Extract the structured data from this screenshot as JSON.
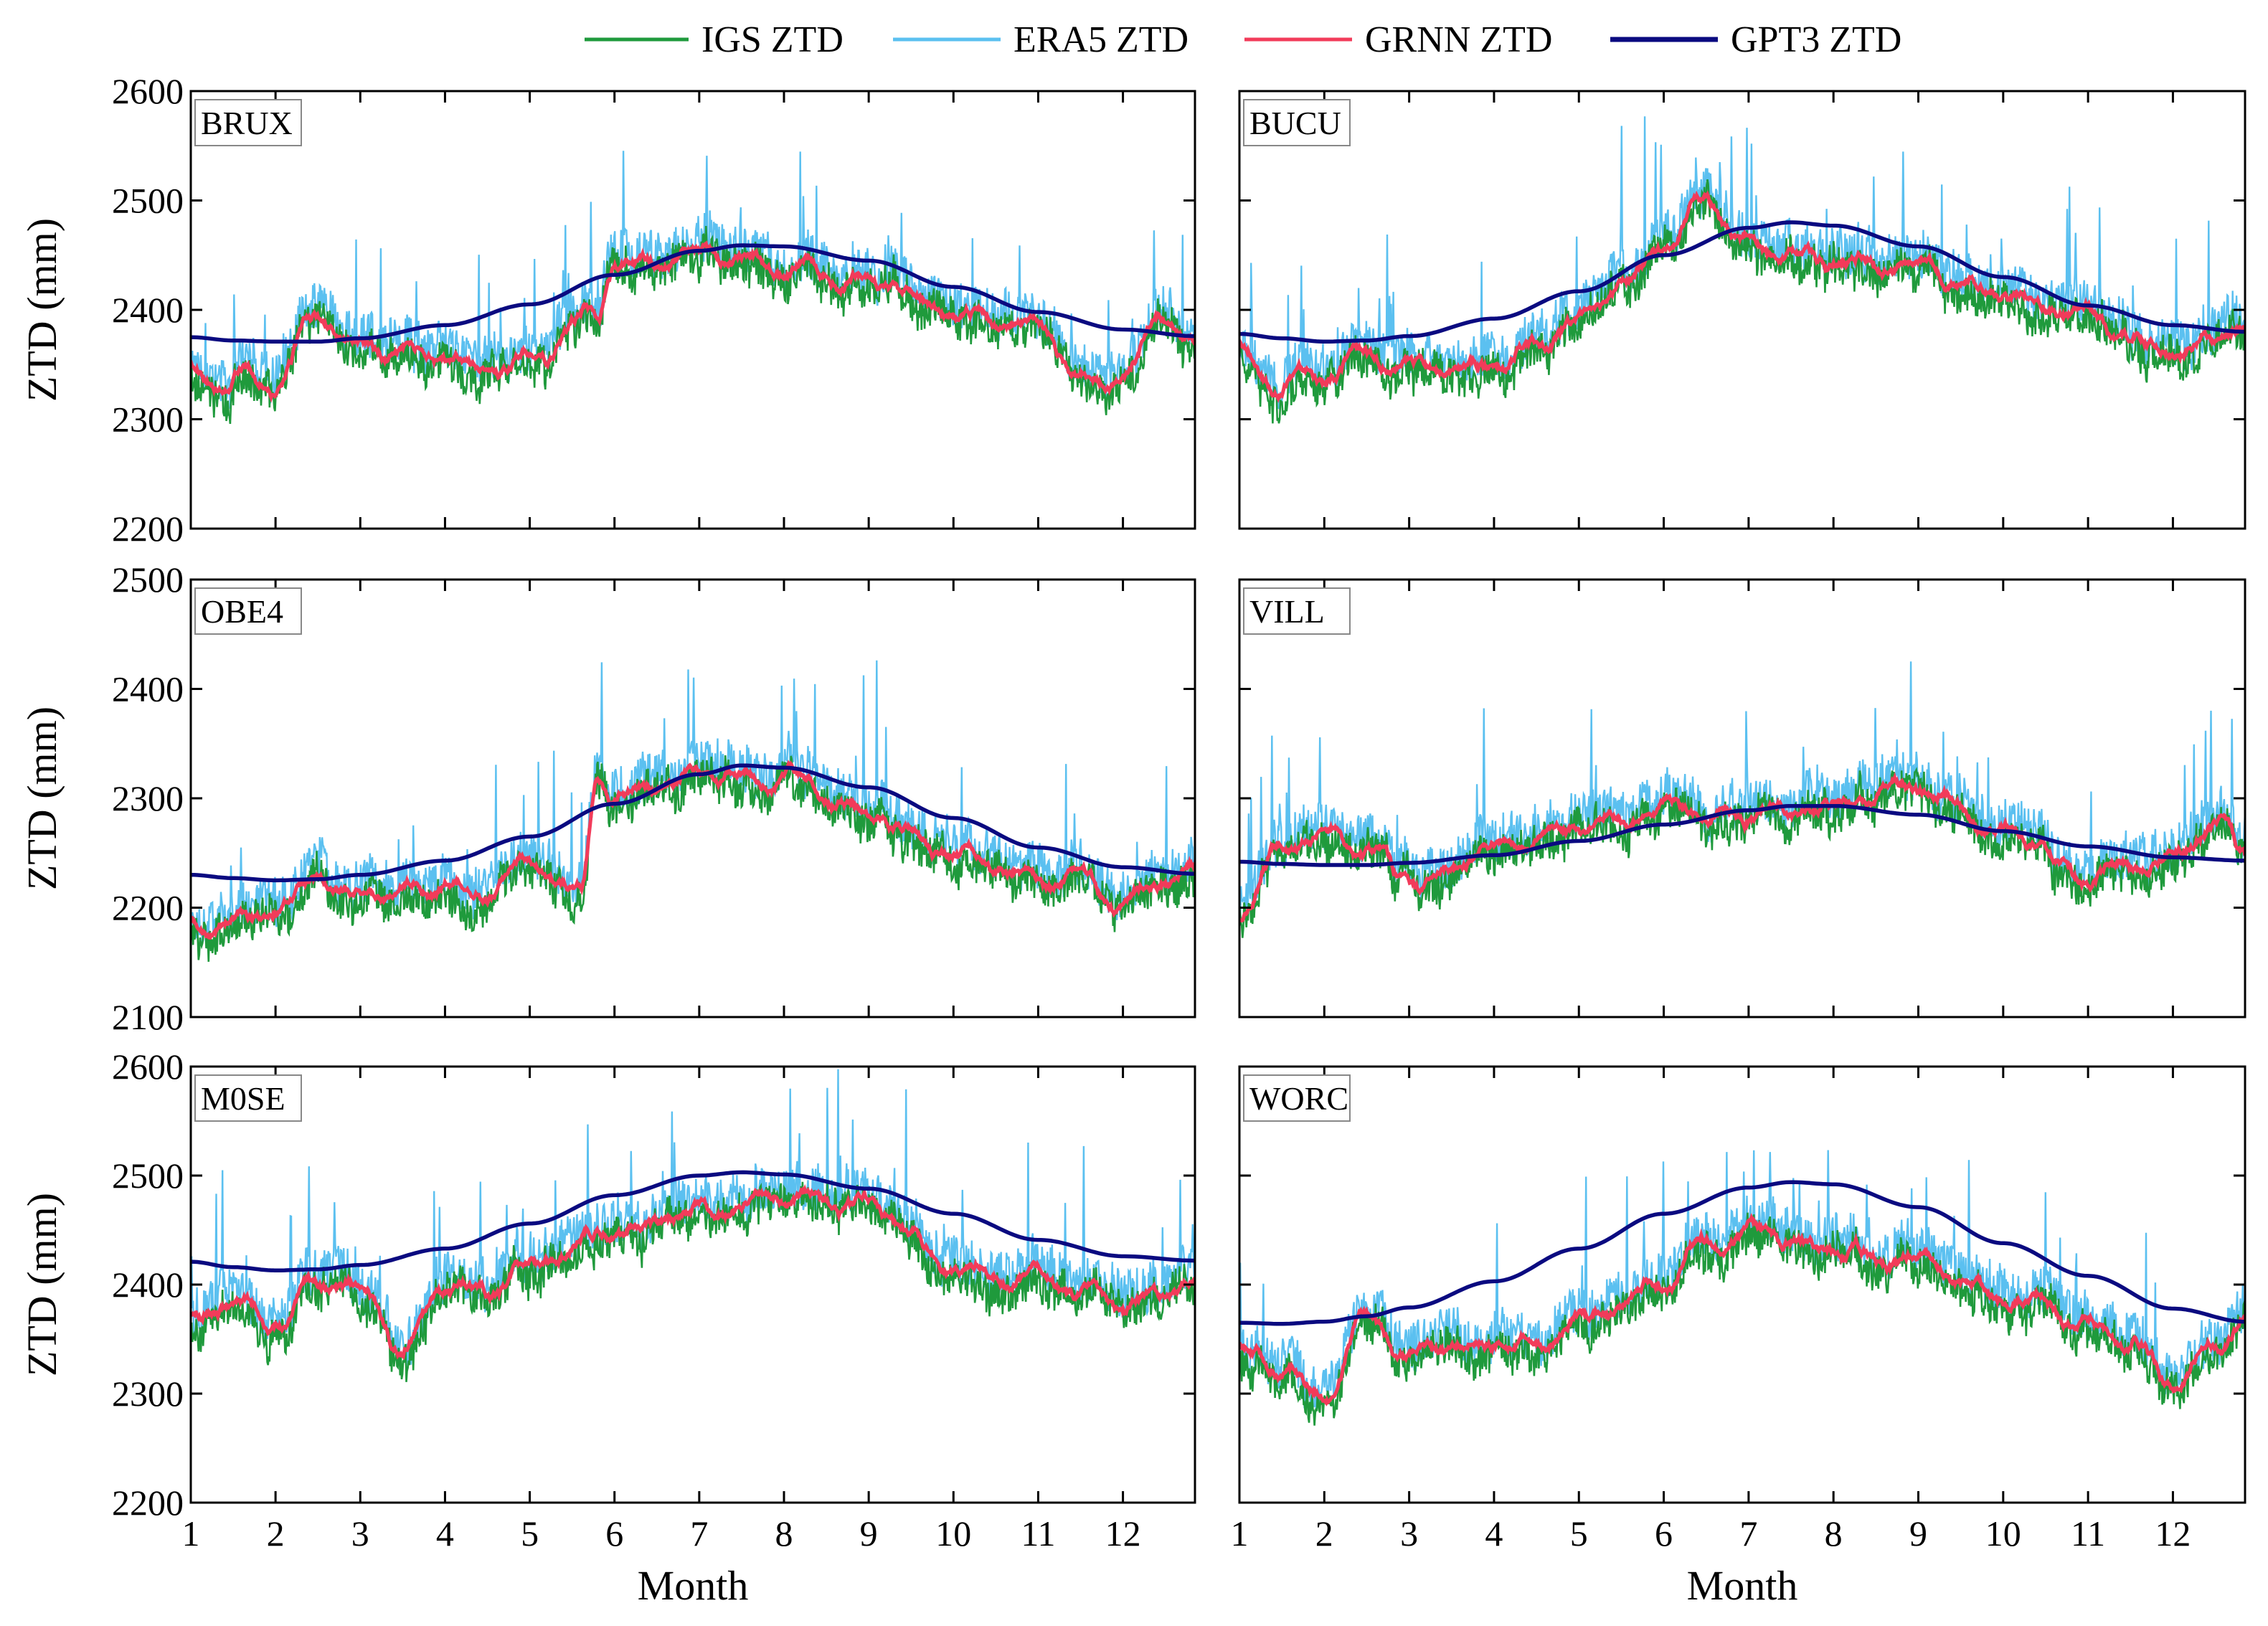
{
  "chart_data": {
    "type": "line",
    "layout": "3 rows x 2 columns",
    "legend": {
      "placement": "top-center",
      "entries": [
        {
          "name": "IGS ZTD",
          "color": "#1f9a3c"
        },
        {
          "name": "ERA5 ZTD",
          "color": "#5bc0f0"
        },
        {
          "name": "GRNN ZTD",
          "color": "#f23b5a"
        },
        {
          "name": "GPT3 ZTD",
          "color": "#0a0a80"
        }
      ]
    },
    "xlabel": "Month",
    "ylabel": "ZTD (mm)",
    "x_ticks": [
      "1",
      "2",
      "3",
      "4",
      "5",
      "6",
      "7",
      "8",
      "9",
      "10",
      "11",
      "12"
    ],
    "xlim": [
      1,
      12.85
    ],
    "panels": [
      {
        "station": "BRUX",
        "row": 1,
        "col": 1,
        "ylim": [
          2200,
          2600
        ],
        "y_ticks": [
          "2200",
          "2300",
          "2400",
          "2500",
          "2600"
        ],
        "gpt3": {
          "x": [
            1,
            1.5,
            2,
            2.5,
            3,
            4,
            5,
            6,
            7,
            7.5,
            8,
            9,
            10,
            11,
            12,
            12.85
          ],
          "values": [
            2375,
            2372,
            2371,
            2371,
            2374,
            2386,
            2405,
            2432,
            2454,
            2459,
            2458,
            2445,
            2421,
            2398,
            2382,
            2376
          ]
        },
        "grnn_trend": {
          "x": [
            1,
            1.5,
            2,
            2.5,
            3,
            4,
            4.5,
            5,
            5.8,
            6,
            7,
            8,
            9,
            10,
            11,
            11.5,
            12,
            12.5,
            12.85
          ],
          "values": [
            2345,
            2340,
            2325,
            2390,
            2365,
            2360,
            2345,
            2355,
            2395,
            2440,
            2450,
            2440,
            2425,
            2395,
            2385,
            2330,
            2340,
            2395,
            2370
          ]
        },
        "seed": 11
      },
      {
        "station": "BUCU",
        "row": 1,
        "col": 2,
        "ylim": [
          2200,
          2600
        ],
        "y_ticks": [
          "2200",
          "2300",
          "2400",
          "2500",
          "2600"
        ],
        "gpt3": {
          "x": [
            1,
            1.5,
            2,
            2.5,
            3,
            4,
            5,
            6,
            7,
            7.5,
            8,
            9,
            10,
            11,
            12,
            12.85
          ],
          "values": [
            2378,
            2374,
            2371,
            2372,
            2376,
            2392,
            2417,
            2450,
            2475,
            2480,
            2477,
            2458,
            2430,
            2404,
            2386,
            2380
          ]
        },
        "grnn_trend": {
          "x": [
            1,
            1.5,
            2,
            2.5,
            3,
            4,
            5,
            5.5,
            6,
            6.5,
            7,
            8,
            9,
            10,
            11,
            11.5,
            12,
            12.5,
            12.85
          ],
          "values": [
            2365,
            2335,
            2340,
            2360,
            2345,
            2350,
            2385,
            2420,
            2455,
            2500,
            2460,
            2445,
            2440,
            2415,
            2395,
            2370,
            2360,
            2370,
            2385
          ]
        },
        "seed": 23
      },
      {
        "station": "OBE4",
        "row": 2,
        "col": 1,
        "ylim": [
          2100,
          2500
        ],
        "y_ticks": [
          "2100",
          "2200",
          "2300",
          "2400",
          "2500"
        ],
        "gpt3": {
          "x": [
            1,
            1.5,
            2,
            2.5,
            3,
            4,
            5,
            6,
            7,
            7.5,
            8,
            9,
            10,
            11,
            12,
            12.85
          ],
          "values": [
            2230,
            2227,
            2225,
            2226,
            2230,
            2243,
            2265,
            2295,
            2322,
            2330,
            2328,
            2310,
            2282,
            2255,
            2237,
            2231
          ]
        },
        "grnn_trend": {
          "x": [
            1,
            1.5,
            2,
            2.5,
            3,
            4,
            4.5,
            5,
            5.6,
            5.8,
            6,
            7,
            8,
            9,
            10,
            11,
            11.5,
            12,
            12.5,
            12.85
          ],
          "values": [
            2190,
            2185,
            2195,
            2225,
            2210,
            2225,
            2215,
            2240,
            2215,
            2320,
            2300,
            2320,
            2320,
            2285,
            2250,
            2225,
            2230,
            2195,
            2230,
            2235
          ]
        },
        "seed": 37
      },
      {
        "station": "VILL",
        "row": 2,
        "col": 2,
        "ylim": [
          2100,
          2500
        ],
        "y_ticks": [
          "2100",
          "2200",
          "2300",
          "2400",
          "2500"
        ],
        "gpt3": {
          "x": [
            1,
            1.5,
            2,
            2.5,
            3,
            4,
            5,
            6,
            7,
            7.5,
            8,
            9,
            10,
            11,
            12,
            12.85
          ],
          "values": [
            2242,
            2240,
            2239,
            2239,
            2241,
            2248,
            2261,
            2276,
            2289,
            2293,
            2293,
            2285,
            2270,
            2256,
            2246,
            2243
          ]
        },
        "grnn_trend": {
          "x": [
            1,
            1.5,
            2,
            2.5,
            3,
            4,
            5,
            6,
            7,
            8,
            9,
            10,
            11,
            12,
            12.5,
            12.85
          ],
          "values": [
            2195,
            2250,
            2270,
            2250,
            2220,
            2255,
            2270,
            2290,
            2285,
            2290,
            2310,
            2270,
            2230,
            2245,
            2280,
            2245
          ]
        },
        "seed": 51
      },
      {
        "station": "M0SE",
        "row": 3,
        "col": 1,
        "ylim": [
          2200,
          2600
        ],
        "y_ticks": [
          "2200",
          "2300",
          "2400",
          "2500",
          "2600"
        ],
        "gpt3": {
          "x": [
            1,
            1.5,
            2,
            2.5,
            3,
            4,
            5,
            6,
            7,
            7.5,
            8,
            9,
            10,
            11,
            12,
            12.85
          ],
          "values": [
            2421,
            2416,
            2413,
            2414,
            2418,
            2433,
            2456,
            2482,
            2500,
            2503,
            2501,
            2488,
            2465,
            2441,
            2426,
            2422
          ]
        },
        "grnn_trend": {
          "x": [
            1,
            1.5,
            2,
            2.5,
            3,
            3.5,
            4,
            4.5,
            5,
            6,
            7,
            8,
            9,
            10,
            11,
            11.5,
            12,
            12.5,
            12.85
          ],
          "values": [
            2370,
            2385,
            2370,
            2395,
            2400,
            2345,
            2400,
            2390,
            2420,
            2450,
            2465,
            2480,
            2470,
            2420,
            2410,
            2390,
            2380,
            2390,
            2400
          ]
        },
        "seed": 67
      },
      {
        "station": "WORC",
        "row": 3,
        "col": 2,
        "ylim": [
          2200,
          2600
        ],
        "y_ticks": [
          "2200",
          "2300",
          "2400",
          "2500",
          "2600"
        ],
        "gpt3": {
          "x": [
            1,
            1.5,
            2,
            2.5,
            3,
            4,
            5,
            6,
            7,
            7.5,
            8,
            9,
            10,
            11,
            12,
            12.85
          ],
          "values": [
            2365,
            2364,
            2366,
            2371,
            2379,
            2403,
            2433,
            2465,
            2489,
            2494,
            2492,
            2471,
            2438,
            2408,
            2378,
            2366
          ]
        },
        "grnn_trend": {
          "x": [
            1,
            1.5,
            2,
            2.5,
            3,
            3.5,
            4,
            4.5,
            5,
            6,
            6.5,
            7,
            8,
            9,
            10,
            11,
            11.5,
            12,
            12.5,
            12.85
          ],
          "values": [
            2345,
            2325,
            2300,
            2370,
            2330,
            2340,
            2350,
            2345,
            2370,
            2400,
            2440,
            2450,
            2430,
            2420,
            2390,
            2365,
            2345,
            2310,
            2340,
            2370
          ]
        },
        "seed": 79
      }
    ]
  }
}
